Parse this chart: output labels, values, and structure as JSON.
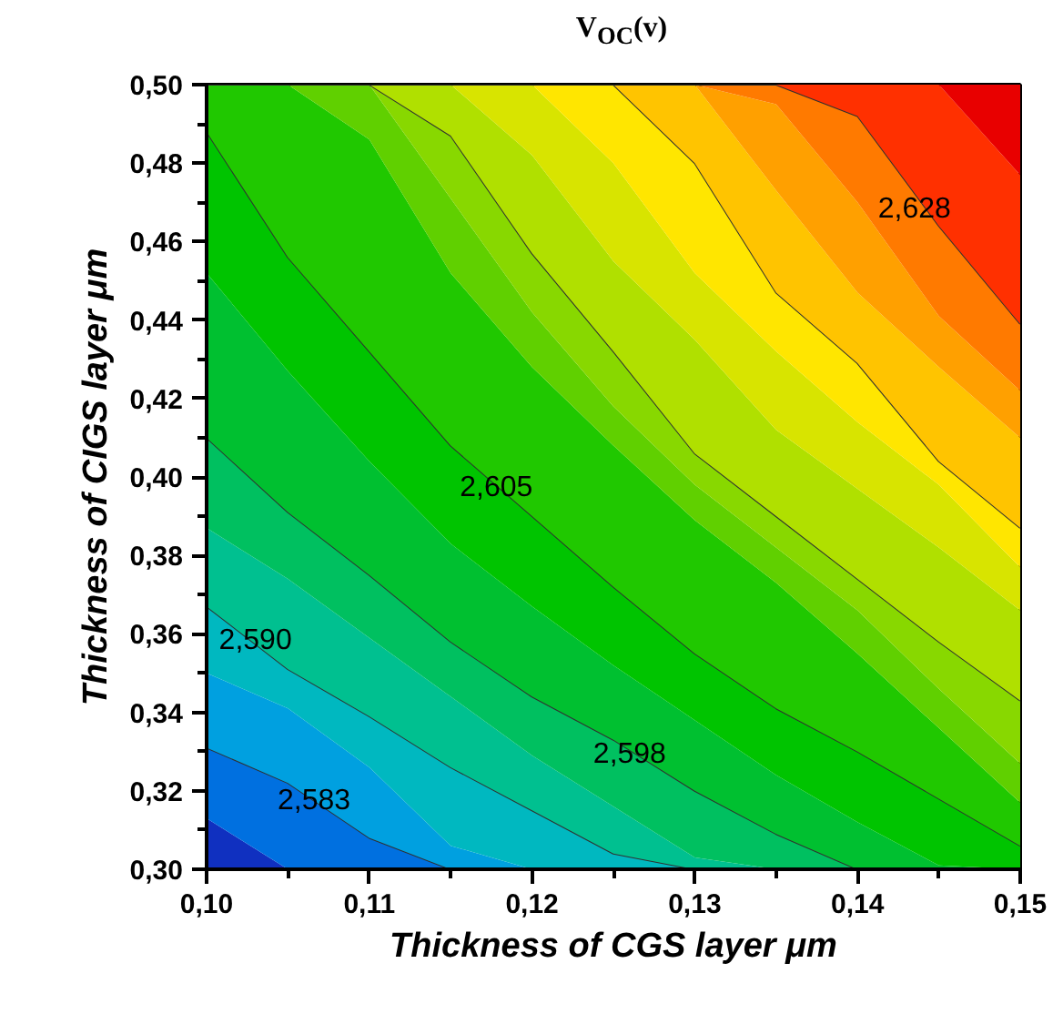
{
  "chart_data": {
    "type": "area",
    "title": "V$_{OC}$(v)",
    "xlabel": "Thickness of CGS layer μm",
    "ylabel": "Thickness of CIGS layer μm",
    "x": [
      0.1,
      0.105,
      0.11,
      0.115,
      0.12,
      0.125,
      0.13,
      0.135,
      0.14,
      0.145,
      0.15
    ],
    "xlim": [
      0.1,
      0.15
    ],
    "ylim": [
      0.3,
      0.5
    ],
    "xticks": [
      {
        "value": 0.1,
        "label": "0,10"
      },
      {
        "value": 0.11,
        "label": "0,11"
      },
      {
        "value": 0.12,
        "label": "0,12"
      },
      {
        "value": 0.13,
        "label": "0,13"
      },
      {
        "value": 0.14,
        "label": "0,14"
      },
      {
        "value": 0.15,
        "label": "0,15"
      }
    ],
    "yticks": [
      {
        "value": 0.3,
        "label": "0,30"
      },
      {
        "value": 0.32,
        "label": "0,32"
      },
      {
        "value": 0.34,
        "label": "0,34"
      },
      {
        "value": 0.36,
        "label": "0,36"
      },
      {
        "value": 0.38,
        "label": "0,38"
      },
      {
        "value": 0.4,
        "label": "0,40"
      },
      {
        "value": 0.42,
        "label": "0,42"
      },
      {
        "value": 0.44,
        "label": "0,44"
      },
      {
        "value": 0.46,
        "label": "0,46"
      },
      {
        "value": 0.48,
        "label": "0,48"
      },
      {
        "value": 0.5,
        "label": "0,50"
      }
    ],
    "series": [
      {
        "color": "#1030c0",
        "values": [
          0.313,
          0.3,
          0.3,
          0.3,
          0.3,
          0.3,
          0.3,
          0.3,
          0.3,
          0.3,
          0.3
        ]
      },
      {
        "color": "#0070e0",
        "line_style": "solid",
        "values": [
          0.331,
          0.322,
          0.308,
          0.3,
          0.3,
          0.3,
          0.3,
          0.3,
          0.3,
          0.3,
          0.3
        ]
      },
      {
        "color": "#00a0e0",
        "values": [
          0.35,
          0.341,
          0.326,
          0.306,
          0.3,
          0.3,
          0.3,
          0.3,
          0.3,
          0.3,
          0.3
        ]
      },
      {
        "color": "#00b8c0",
        "line_style": "solid",
        "values": [
          0.367,
          0.351,
          0.339,
          0.326,
          0.315,
          0.304,
          0.3,
          0.3,
          0.3,
          0.3,
          0.3
        ]
      },
      {
        "color": "#00c090",
        "values": [
          0.387,
          0.374,
          0.359,
          0.344,
          0.329,
          0.316,
          0.303,
          0.3,
          0.3,
          0.3,
          0.3
        ]
      },
      {
        "color": "#00c060",
        "line_style": "solid",
        "values": [
          0.41,
          0.391,
          0.375,
          0.358,
          0.344,
          0.333,
          0.32,
          0.309,
          0.3,
          0.3,
          0.3
        ]
      },
      {
        "color": "#00c030",
        "values": [
          0.452,
          0.427,
          0.404,
          0.383,
          0.367,
          0.352,
          0.338,
          0.324,
          0.312,
          0.301,
          0.3
        ]
      },
      {
        "color": "#00c400",
        "line_style": "solid",
        "values": [
          0.488,
          0.456,
          0.432,
          0.408,
          0.39,
          0.372,
          0.355,
          0.341,
          0.33,
          0.318,
          0.306
        ]
      },
      {
        "color": "#20c800",
        "values": [
          0.5,
          0.5,
          0.486,
          0.452,
          0.428,
          0.408,
          0.389,
          0.373,
          0.355,
          0.336,
          0.317
        ]
      },
      {
        "color": "#60d000",
        "values": [
          0.5,
          0.5,
          0.5,
          0.471,
          0.442,
          0.418,
          0.398,
          0.382,
          0.366,
          0.346,
          0.327
        ]
      },
      {
        "color": "#88d800",
        "line_style": "solid",
        "values": [
          0.5,
          0.5,
          0.5,
          0.487,
          0.457,
          0.432,
          0.406,
          0.39,
          0.374,
          0.358,
          0.343
        ]
      },
      {
        "color": "#b0e000",
        "values": [
          0.5,
          0.5,
          0.5,
          0.5,
          0.482,
          0.455,
          0.435,
          0.412,
          0.397,
          0.382,
          0.366
        ]
      },
      {
        "color": "#d8e400",
        "values": [
          0.5,
          0.5,
          0.5,
          0.5,
          0.5,
          0.48,
          0.452,
          0.432,
          0.414,
          0.398,
          0.377
        ]
      },
      {
        "color": "#ffe600",
        "line_style": "solid",
        "values": [
          0.5,
          0.5,
          0.5,
          0.5,
          0.5,
          0.5,
          0.48,
          0.447,
          0.429,
          0.404,
          0.387
        ]
      },
      {
        "color": "#ffc400",
        "values": [
          0.5,
          0.5,
          0.5,
          0.5,
          0.5,
          0.5,
          0.5,
          0.473,
          0.447,
          0.428,
          0.41
        ]
      },
      {
        "color": "#ffa000",
        "values": [
          0.5,
          0.5,
          0.5,
          0.5,
          0.5,
          0.5,
          0.5,
          0.495,
          0.47,
          0.441,
          0.422
        ]
      },
      {
        "color": "#ff7a00",
        "line_style": "solid",
        "values": [
          0.5,
          0.5,
          0.5,
          0.5,
          0.5,
          0.5,
          0.5,
          0.5,
          0.492,
          0.464,
          0.439
        ]
      },
      {
        "color": "#ff3000",
        "values": [
          0.5,
          0.5,
          0.5,
          0.5,
          0.5,
          0.5,
          0.5,
          0.5,
          0.5,
          0.5,
          0.477
        ]
      },
      {
        "color": "#e80000",
        "values": [
          0.5,
          0.5,
          0.5,
          0.5,
          0.5,
          0.5,
          0.5,
          0.5,
          0.5,
          0.5,
          0.5
        ]
      }
    ],
    "annotations": [
      {
        "text": "2,583",
        "x": 0.1066,
        "y": 0.318
      },
      {
        "text": "2,590",
        "x": 0.103,
        "y": 0.359
      },
      {
        "text": "2,598",
        "x": 0.126,
        "y": 0.33
      },
      {
        "text": "2,605",
        "x": 0.1178,
        "y": 0.398
      },
      {
        "text": "2,628",
        "x": 0.1435,
        "y": 0.469
      }
    ]
  }
}
